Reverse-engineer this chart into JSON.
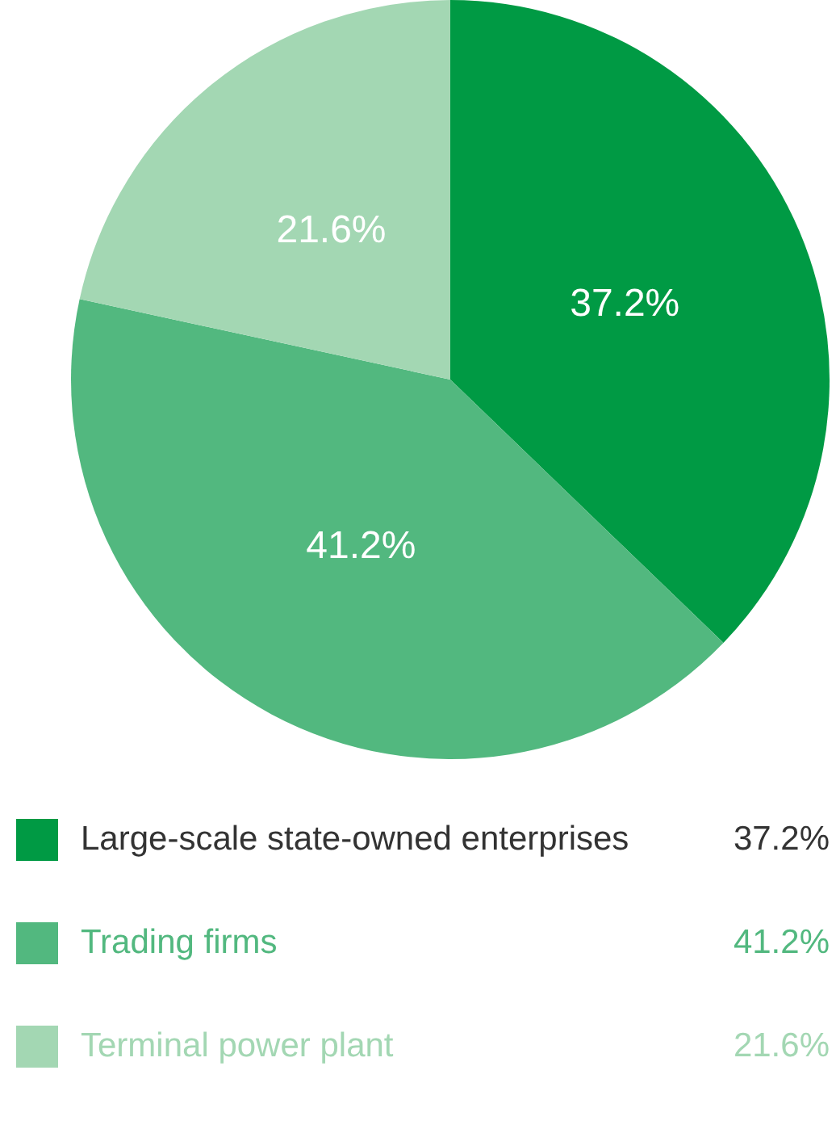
{
  "chart_data": {
    "type": "pie",
    "categories": [
      "Large-scale state-owned enterprises",
      "Trading firms",
      "Terminal power plant"
    ],
    "values": [
      37.2,
      41.2,
      21.6
    ],
    "colors": [
      "#009a44",
      "#52b87f",
      "#a3d7b3"
    ],
    "value_labels": [
      "37.2%",
      "41.2%",
      "21.6%"
    ],
    "legend": "bottom"
  }
}
